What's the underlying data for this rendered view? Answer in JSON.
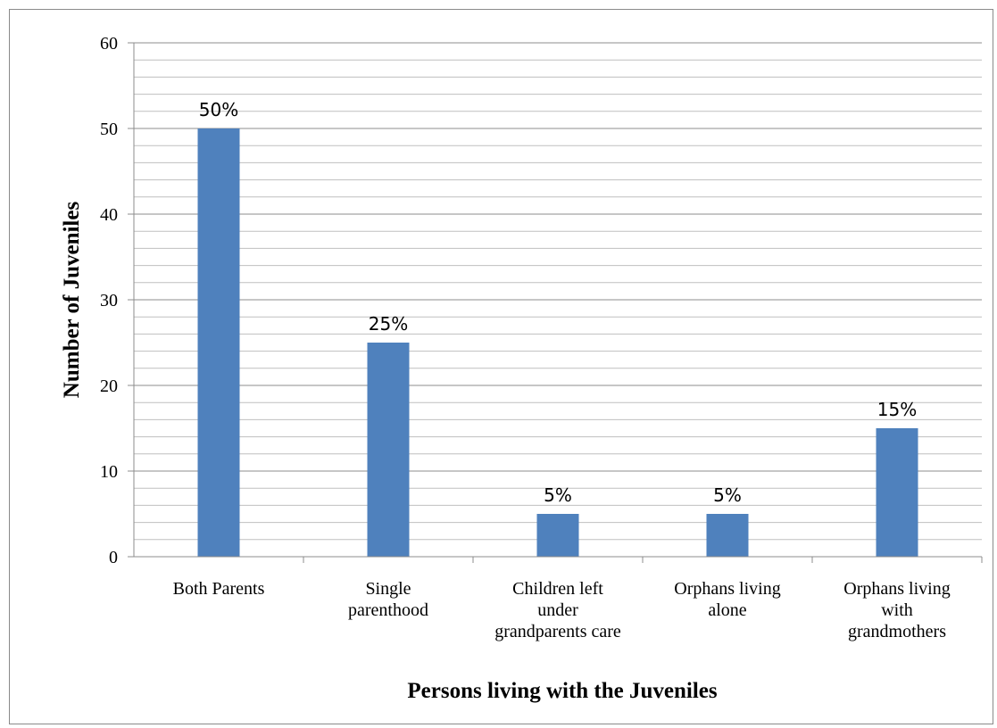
{
  "chart_data": {
    "type": "bar",
    "categories": [
      [
        "Both Parents"
      ],
      [
        "Single",
        "parenthood"
      ],
      [
        "Children left",
        "under",
        "grandparents care"
      ],
      [
        "Orphans living",
        "alone"
      ],
      [
        "Orphans living",
        "with",
        "grandmothers"
      ]
    ],
    "values": [
      50,
      25,
      5,
      5,
      15
    ],
    "data_labels": [
      "50%",
      "25%",
      "5%",
      "5%",
      "15%"
    ],
    "title": "",
    "xlabel": "Persons living with the Juveniles",
    "ylabel": "Number of Juveniles",
    "ylim": [
      0,
      60
    ],
    "yticks": [
      0,
      10,
      20,
      30,
      40,
      50,
      60
    ],
    "minor_grid_step": 2,
    "grid": true,
    "legend": "none",
    "bar_color": "#4F81BD",
    "major_grid_color": "#8C8C8C",
    "minor_grid_color": "#BFBFBF"
  }
}
